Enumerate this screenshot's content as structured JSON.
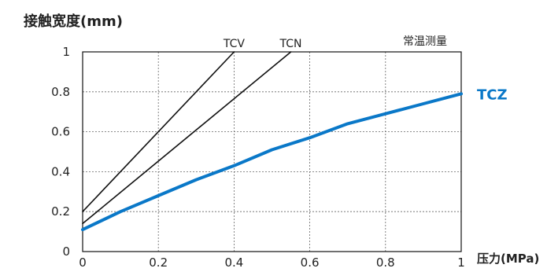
{
  "chart_data": {
    "type": "line",
    "title": "",
    "ylabel": "接触宽度(mm)",
    "xlabel": "压力(MPa)",
    "note": "常温测量",
    "xlim": [
      0,
      1
    ],
    "ylim": [
      0,
      1
    ],
    "x_ticks": [
      "0",
      "0.2",
      "0.4",
      "0.6",
      "0.8",
      "1"
    ],
    "y_ticks": [
      "0",
      "0.2",
      "0.4",
      "0.6",
      "0.8",
      "1"
    ],
    "grid": true,
    "series": [
      {
        "name": "TCV",
        "color": "#111111",
        "x": [
          0,
          0.4
        ],
        "y": [
          0.2,
          1.0
        ]
      },
      {
        "name": "TCN",
        "color": "#111111",
        "x": [
          0,
          0.55
        ],
        "y": [
          0.14,
          1.0
        ]
      },
      {
        "name": "TCZ",
        "color": "#0a78c8",
        "x": [
          0,
          0.1,
          0.2,
          0.3,
          0.4,
          0.5,
          0.6,
          0.7,
          0.8,
          0.9,
          1.0
        ],
        "y": [
          0.11,
          0.2,
          0.28,
          0.36,
          0.43,
          0.51,
          0.57,
          0.64,
          0.69,
          0.74,
          0.79
        ]
      }
    ]
  }
}
